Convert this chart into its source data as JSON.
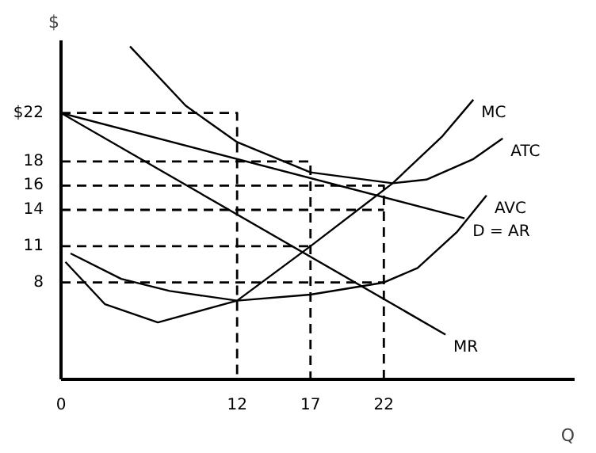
{
  "chart_data": {
    "type": "line",
    "xlabel": "Q",
    "ylabel": "$",
    "xlim": [
      0,
      35
    ],
    "ylim": [
      0,
      28
    ],
    "xticks": [
      0,
      12,
      17,
      22
    ],
    "yticks": [
      {
        "value": 22,
        "label": "$22"
      },
      18,
      16,
      14,
      11,
      8
    ],
    "grid": false,
    "marker": "none",
    "series": [
      {
        "name": "MC",
        "color": "#000000",
        "x": [
          0.3,
          3,
          6.6,
          12,
          17,
          22.6,
          26,
          28.1
        ],
        "values": [
          9.7,
          6.2,
          4.7,
          6.5,
          11,
          16.2,
          20.1,
          23.1
        ]
      },
      {
        "name": "ATC",
        "color": "#000000",
        "x": [
          4.7,
          8.5,
          12,
          17,
          22.6,
          24.9,
          28.1,
          30.1
        ],
        "values": [
          27.5,
          22.6,
          19.6,
          17.1,
          16.2,
          16.5,
          18.2,
          19.9
        ]
      },
      {
        "name": "AVC",
        "color": "#000000",
        "x": [
          0.65,
          4.1,
          7.4,
          12,
          17,
          22,
          24.3,
          27,
          29
        ],
        "values": [
          10.4,
          8.3,
          7.3,
          6.5,
          7,
          8,
          9.2,
          12.2,
          15.2
        ]
      },
      {
        "name": "D = AR",
        "color": "#000000",
        "x": [
          0,
          27.5
        ],
        "values": [
          22,
          13.3
        ]
      },
      {
        "name": "MR",
        "color": "#000000",
        "x": [
          0,
          26.2
        ],
        "values": [
          22,
          3.7
        ]
      },
      {
        "color": "#000000",
        "line_style": "dashed",
        "x": [
          0,
          12,
          12
        ],
        "values": [
          22,
          22,
          0
        ]
      },
      {
        "color": "#000000",
        "line_style": "dashed",
        "x": [
          0,
          17,
          17
        ],
        "values": [
          18,
          18,
          0
        ]
      },
      {
        "color": "#000000",
        "line_style": "dashed",
        "x": [
          0,
          22,
          22
        ],
        "values": [
          16,
          16,
          0
        ]
      },
      {
        "color": "#000000",
        "line_style": "dashed",
        "x": [
          0,
          22
        ],
        "values": [
          14,
          14
        ]
      },
      {
        "color": "#000000",
        "line_style": "dashed",
        "x": [
          0,
          17
        ],
        "values": [
          11,
          11
        ]
      },
      {
        "color": "#000000",
        "line_style": "dashed",
        "x": [
          0,
          22
        ],
        "values": [
          8,
          8
        ]
      }
    ]
  }
}
